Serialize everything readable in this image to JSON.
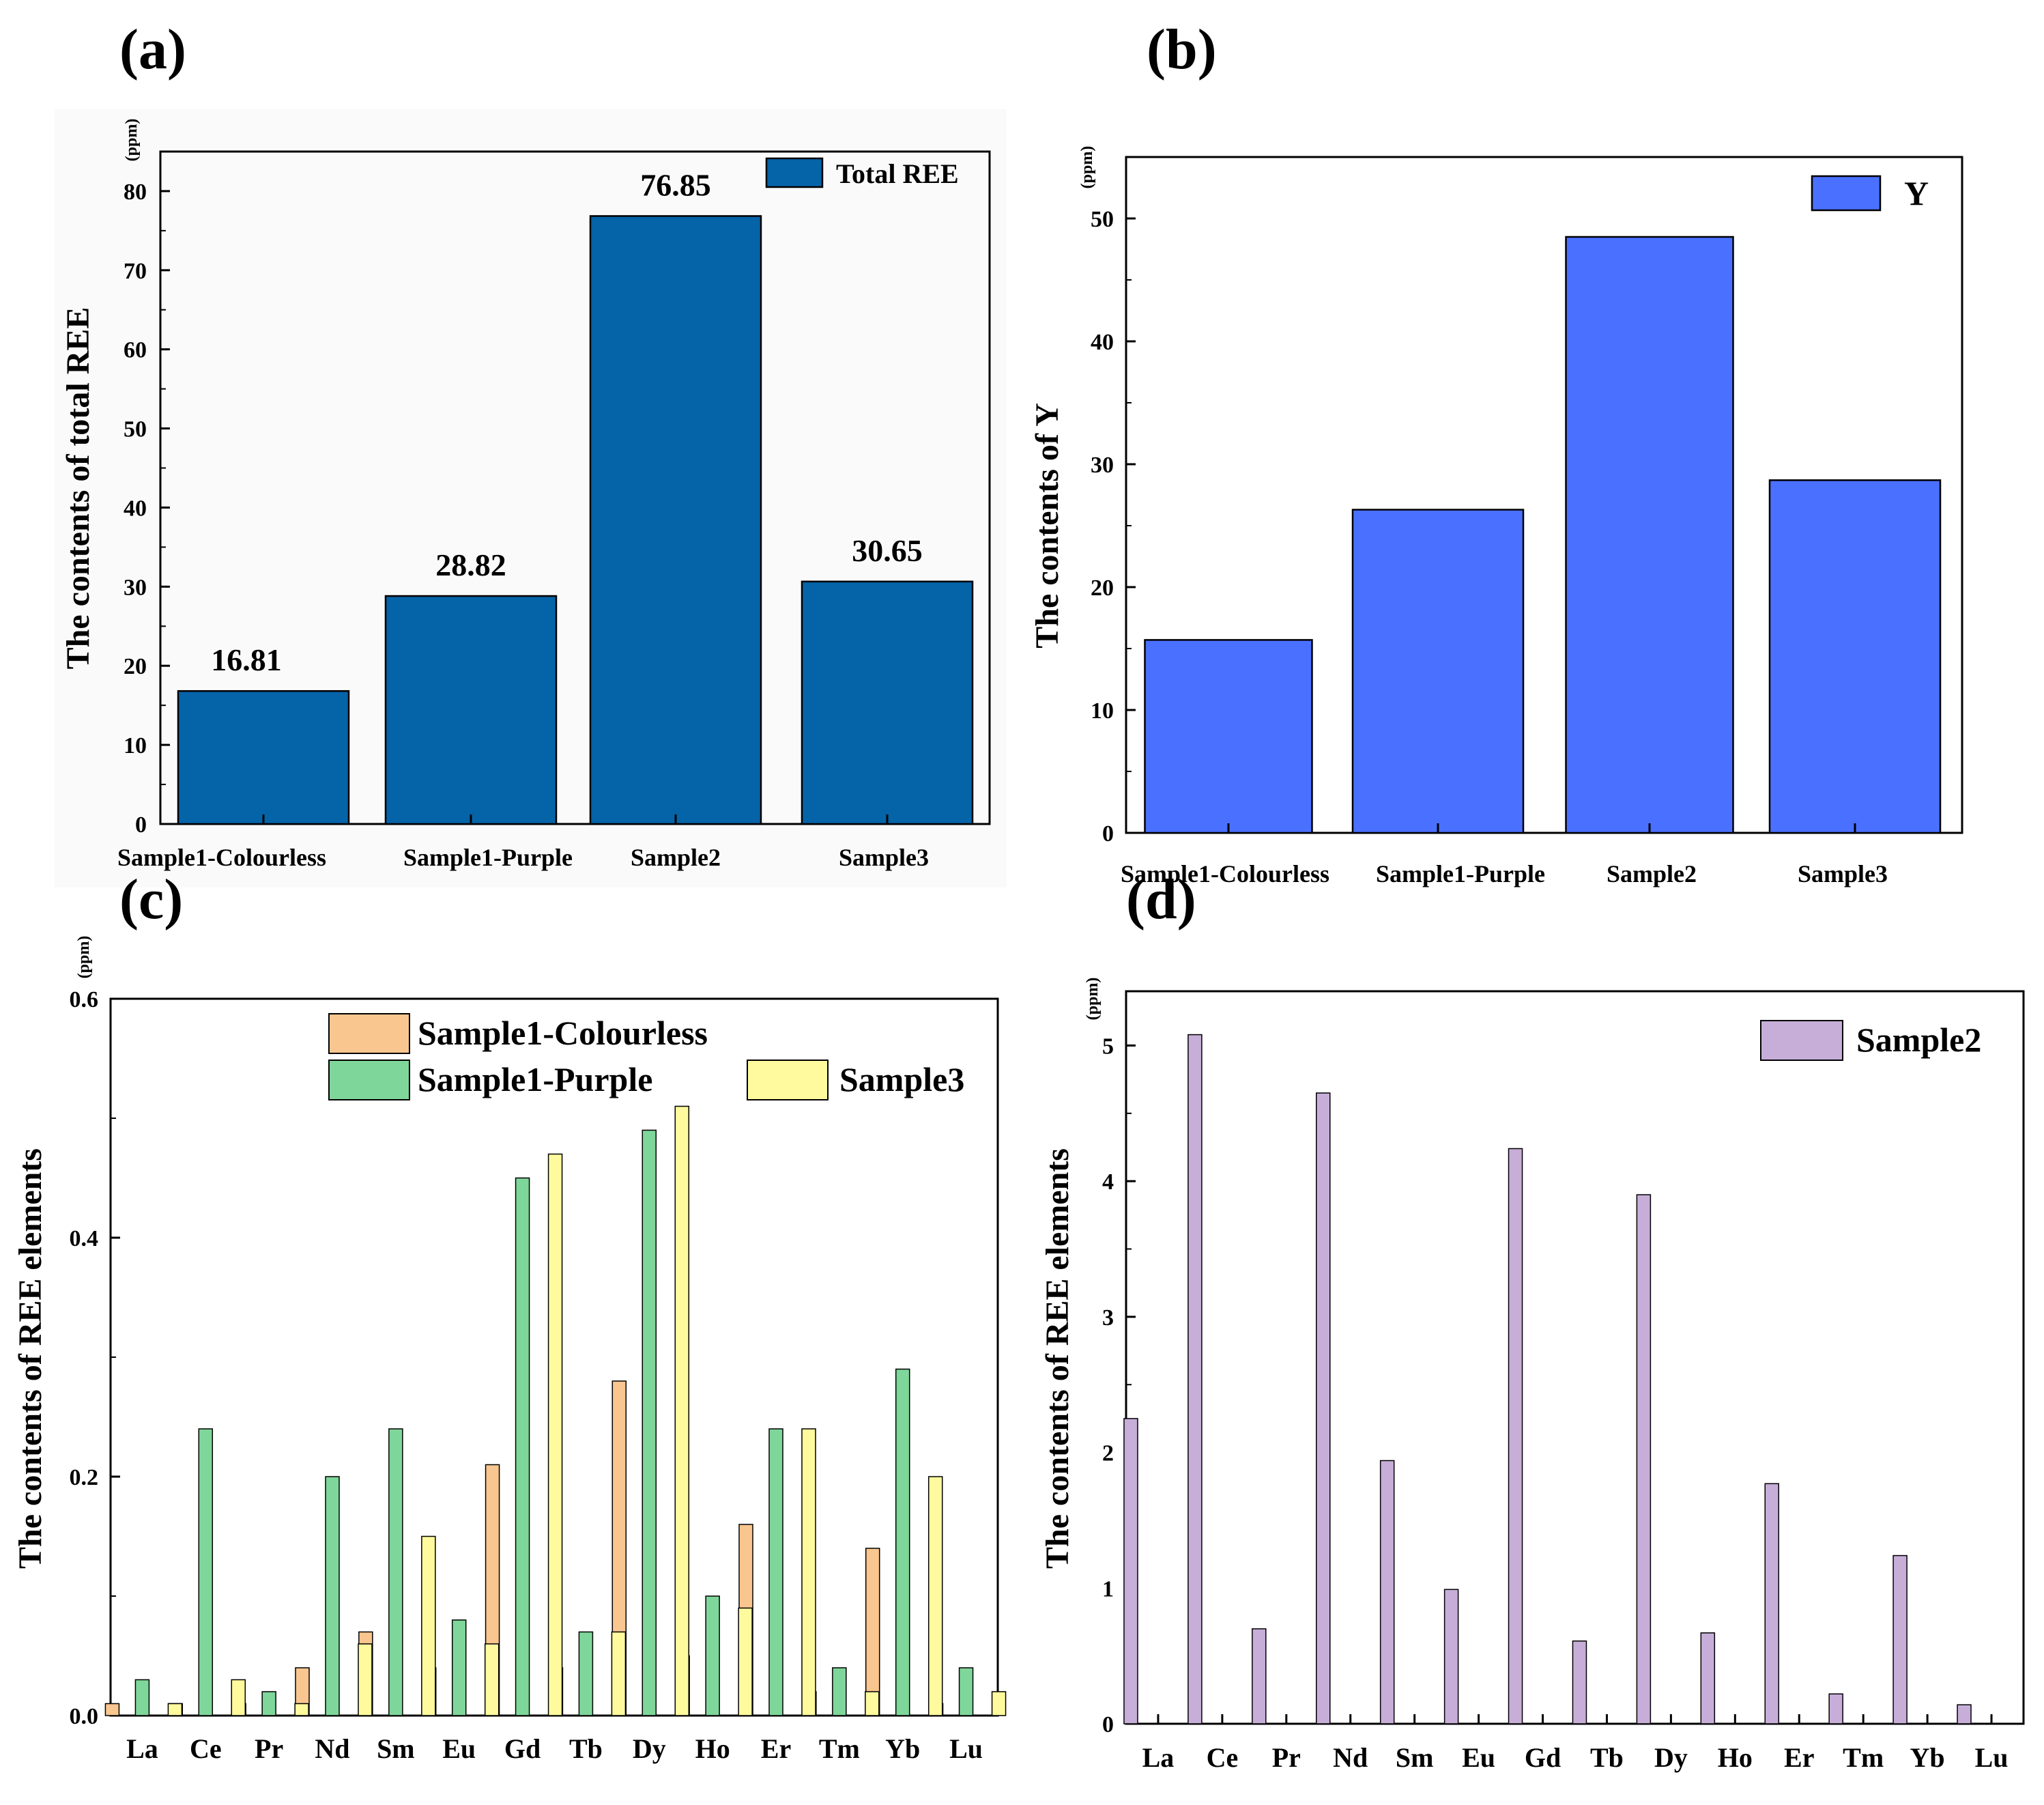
{
  "chart_data": [
    {
      "panel": "(a)",
      "type": "bar",
      "ylabel": "The contents of total REE",
      "unit": "(ppm)",
      "categories": [
        "Sample1-Colourless",
        "Sample1-Purple",
        "Sample2",
        "Sample3"
      ],
      "series": [
        {
          "name": "Total REE",
          "values": [
            16.81,
            28.82,
            76.85,
            30.65
          ]
        }
      ],
      "data_labels": [
        "16.81",
        "28.82",
        "76.85",
        "30.65"
      ],
      "yticks": [
        0,
        10,
        20,
        30,
        40,
        50,
        60,
        70,
        80
      ],
      "ylim": [
        0,
        85
      ],
      "legend": "top-right",
      "colors": {
        "bar": "#0563a8"
      }
    },
    {
      "panel": "(b)",
      "type": "bar",
      "ylabel": "The contents of Y",
      "unit": "(ppm)",
      "categories": [
        "Sample1-Colourless",
        "Sample1-Purple",
        "Sample2",
        "Sample3"
      ],
      "series": [
        {
          "name": "Y",
          "values": [
            15.7,
            26.3,
            48.5,
            28.7
          ]
        }
      ],
      "yticks": [
        0,
        10,
        20,
        30,
        40,
        50
      ],
      "ylim": [
        0,
        55
      ],
      "legend": "top-right",
      "colors": {
        "bar": "#4a70ff"
      }
    },
    {
      "panel": "(c)",
      "type": "bar",
      "ylabel": "The contents of REE elements",
      "unit": "(ppm)",
      "categories": [
        "La",
        "Ce",
        "Pr",
        "Nd",
        "Sm",
        "Eu",
        "Gd",
        "Tb",
        "Dy",
        "Ho",
        "Er",
        "Tm",
        "Yb",
        "Lu"
      ],
      "series": [
        {
          "name": "Sample1-Colourless",
          "values": [
            0.01,
            0.01,
            0.01,
            0.04,
            0.07,
            0.04,
            0.21,
            0.04,
            0.28,
            0.05,
            0.16,
            0.02,
            0.14,
            0.01
          ]
        },
        {
          "name": "Sample1-Purple",
          "values": [
            0.03,
            0.24,
            0.02,
            0.2,
            0.24,
            0.08,
            0.45,
            0.07,
            0.49,
            0.1,
            0.24,
            0.04,
            0.29,
            0.04
          ]
        },
        {
          "name": "Sample3",
          "values": [
            0.01,
            0.03,
            0.01,
            0.06,
            0.15,
            0.06,
            0.47,
            0.07,
            0.51,
            0.09,
            0.24,
            0.02,
            0.2,
            0.02
          ]
        }
      ],
      "yticks": [
        "0.0",
        "0.2",
        "0.4",
        "0.6"
      ],
      "ylim": [
        0,
        0.6
      ],
      "legend": "top",
      "colors": {
        "Sample1-Colourless": "#f9c690",
        "Sample1-Purple": "#7fd69a",
        "Sample3": "#fffa9e"
      }
    },
    {
      "panel": "(d)",
      "type": "bar",
      "ylabel": "The contents of REE elements",
      "unit": "(ppm)",
      "categories": [
        "La",
        "Ce",
        "Pr",
        "Nd",
        "Sm",
        "Eu",
        "Gd",
        "Tb",
        "Dy",
        "Ho",
        "Er",
        "Tm",
        "Yb",
        "Lu"
      ],
      "series": [
        {
          "name": "Sample2",
          "values": [
            2.25,
            5.08,
            0.7,
            4.65,
            1.94,
            0.99,
            4.24,
            0.61,
            3.9,
            0.67,
            1.77,
            0.22,
            1.24,
            0.14
          ]
        }
      ],
      "yticks": [
        0,
        1,
        2,
        3,
        4,
        5
      ],
      "ylim": [
        0,
        5.4
      ],
      "legend": "top-right",
      "colors": {
        "Sample2": "#c7aed9"
      }
    }
  ]
}
